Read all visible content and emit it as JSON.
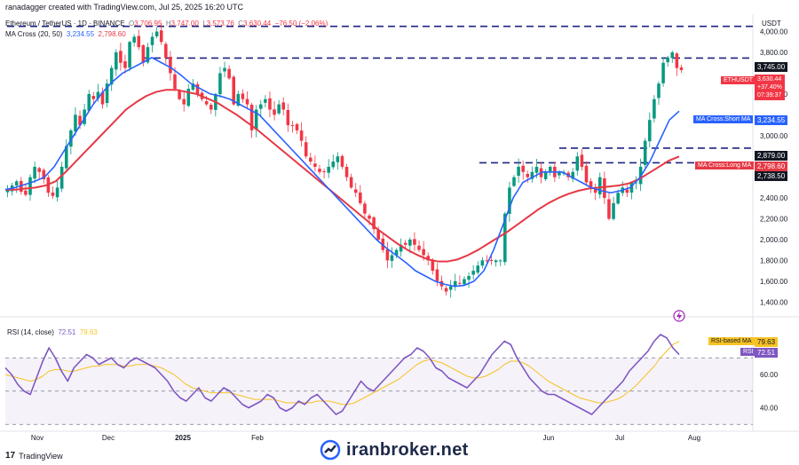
{
  "header": {
    "creator": "ranadagger created with TradingView.com, Jul 25, 2025 16:20 UTC",
    "symbol": "Ethereum / TetherUS · 1D · BINANCE",
    "o_label": "O",
    "o_value": "3,706.95",
    "h_label": "H",
    "h_value": "3,747.00",
    "l_label": "L",
    "l_value": "3,573.76",
    "c_label": "C",
    "c_value": "3,630.44",
    "change": "−76.50 (−2.06%)",
    "ma_label": "MA Cross (20, 50)",
    "ma_short": "3,234.55",
    "ma_long": "2,798.60"
  },
  "price_axis": {
    "unit": "USDT",
    "ticks": [
      "4,000.00",
      "3,800.00",
      "3,400.00",
      "3,000.00",
      "2,600.00",
      "2,400.00",
      "2,200.00",
      "2,000.00",
      "1,800.00",
      "1,600.00",
      "1,400.00"
    ]
  },
  "time_axis": [
    "Nov",
    "Dec",
    "2025",
    "Feb",
    "Jun",
    "Jul",
    "Aug"
  ],
  "price_badges": {
    "level_3745": "3,745.00",
    "symbol_tag": "ETHUSDT",
    "last_price": "3,630.44",
    "last_change": "+37.40%",
    "countdown": "07:39:37",
    "short_ma_label": "MA Cross:Short MA",
    "short_ma_value": "3,234.55",
    "level_2879": "2,879.00",
    "long_ma_label": "MA Cross:Long MA",
    "long_ma_value": "2,798.60",
    "level_2738": "2,738.50"
  },
  "rsi": {
    "label": "RSI (14, close)",
    "rsi_value": "72.51",
    "ma_value": "79.63",
    "ma_badge_label": "RSI-based MA",
    "ma_badge_value": "79.63",
    "rsi_badge_label": "RSI",
    "rsi_badge_value": "72.51",
    "ticks": [
      "60.00",
      "40.00"
    ]
  },
  "footer": {
    "tradingview": "TradingView",
    "watermark": "iranbroker.net"
  },
  "colors": {
    "up": "#089981",
    "down": "#f23645",
    "short_ma": "#2962ff",
    "long_ma": "#e53945",
    "rsi_line": "#7e57c2",
    "rsi_ma": "#f7c325",
    "level_line": "#1c2580"
  },
  "chart_data": {
    "type": "candlestick",
    "title": "Ethereum / TetherUS · 1D · BINANCE",
    "ylabel": "USDT",
    "ylim": [
      1300,
      4150
    ],
    "horizontal_levels": [
      4050,
      3745,
      2879,
      2738.5
    ],
    "close_path": [
      2480,
      2520,
      2560,
      2460,
      2430,
      2600,
      2700,
      2650,
      2580,
      2450,
      2420,
      2500,
      2700,
      2900,
      3050,
      3200,
      3100,
      3250,
      3400,
      3350,
      3420,
      3300,
      3500,
      3650,
      3800,
      3700,
      3650,
      3900,
      3950,
      3850,
      3700,
      3850,
      3950,
      4000,
      3900,
      3750,
      3600,
      3450,
      3350,
      3300,
      3450,
      3500,
      3400,
      3350,
      3300,
      3250,
      3400,
      3600,
      3650,
      3550,
      3300,
      3400,
      3350,
      3300,
      3050,
      3250,
      3300,
      3350,
      3250,
      3200,
      3300,
      3250,
      3100,
      3100,
      3050,
      2950,
      2800,
      2750,
      2700,
      2650,
      2650,
      2700,
      2750,
      2800,
      2700,
      2600,
      2500,
      2450,
      2350,
      2250,
      2200,
      2100,
      2000,
      1900,
      1800,
      1850,
      1900,
      1950,
      1950,
      2000,
      1950,
      1900,
      1850,
      1800,
      1700,
      1600,
      1550,
      1500,
      1550,
      1600,
      1580,
      1620,
      1650,
      1700,
      1750,
      1800,
      1800,
      1800,
      1800,
      1800,
      2250,
      2500,
      2600,
      2700,
      2650,
      2600,
      2650,
      2700,
      2600,
      2650,
      2700,
      2600,
      2650,
      2650,
      2600,
      2650,
      2800,
      2700,
      2550,
      2500,
      2450,
      2600,
      2400,
      2200,
      2350,
      2450,
      2500,
      2450,
      2550,
      2550,
      2700,
      2950,
      3150,
      3350,
      3500,
      3700,
      3750,
      3800,
      3650,
      3630
    ],
    "short_ma_path": [
      2480,
      2500,
      2530,
      2560,
      2600,
      2700,
      2850,
      3000,
      3150,
      3300,
      3420,
      3520,
      3600,
      3650,
      3700,
      3750,
      3700,
      3650,
      3580,
      3500,
      3450,
      3400,
      3380,
      3350,
      3300,
      3250,
      3200,
      3100,
      3000,
      2900,
      2800,
      2700,
      2600,
      2500,
      2400,
      2300,
      2200,
      2100,
      2000,
      1920,
      1850,
      1780,
      1700,
      1650,
      1600,
      1570,
      1550,
      1560,
      1600,
      1700,
      1900,
      2150,
      2400,
      2550,
      2600,
      2650,
      2650,
      2650,
      2600,
      2550,
      2500,
      2470,
      2450,
      2470,
      2500,
      2600,
      2750,
      2950,
      3150,
      3235
    ],
    "long_ma_path": [
      2480,
      2480,
      2490,
      2500,
      2520,
      2560,
      2650,
      2750,
      2850,
      2950,
      3050,
      3150,
      3250,
      3320,
      3380,
      3420,
      3440,
      3440,
      3420,
      3400,
      3360,
      3320,
      3260,
      3200,
      3130,
      3060,
      2980,
      2900,
      2820,
      2740,
      2660,
      2580,
      2500,
      2420,
      2340,
      2260,
      2180,
      2100,
      2030,
      1960,
      1900,
      1850,
      1810,
      1790,
      1790,
      1810,
      1850,
      1900,
      1960,
      2020,
      2080,
      2150,
      2220,
      2290,
      2350,
      2400,
      2440,
      2470,
      2490,
      2500,
      2510,
      2520,
      2540,
      2580,
      2640,
      2700,
      2760,
      2799
    ],
    "rsi_path": [
      64,
      60,
      54,
      50,
      48,
      58,
      68,
      76,
      70,
      62,
      56,
      64,
      68,
      72,
      70,
      66,
      68,
      70,
      66,
      64,
      68,
      70,
      68,
      66,
      64,
      60,
      56,
      50,
      46,
      44,
      48,
      52,
      46,
      44,
      48,
      52,
      50,
      46,
      42,
      40,
      42,
      44,
      48,
      46,
      40,
      38,
      40,
      44,
      42,
      46,
      48,
      44,
      40,
      36,
      38,
      44,
      50,
      56,
      52,
      50,
      54,
      58,
      62,
      66,
      70,
      72,
      76,
      74,
      70,
      64,
      62,
      58,
      56,
      54,
      52,
      56,
      60,
      66,
      72,
      76,
      80,
      78,
      70,
      64,
      58,
      54,
      50,
      48,
      48,
      46,
      44,
      42,
      40,
      38,
      36,
      40,
      44,
      48,
      52,
      56,
      62,
      66,
      70,
      74,
      80,
      84,
      82,
      76,
      72
    ],
    "rsi_ma_path": [
      60,
      59,
      58,
      57,
      56,
      57,
      59,
      62,
      63,
      63,
      62,
      62,
      63,
      64,
      65,
      65,
      66,
      66,
      66,
      65,
      65,
      66,
      66,
      66,
      65,
      64,
      62,
      60,
      57,
      54,
      52,
      51,
      50,
      49,
      49,
      49,
      49,
      48,
      47,
      46,
      45,
      45,
      45,
      45,
      44,
      43,
      43,
      43,
      43,
      43,
      44,
      44,
      44,
      43,
      42,
      42,
      43,
      45,
      47,
      49,
      51,
      53,
      55,
      57,
      60,
      63,
      66,
      68,
      69,
      68,
      67,
      65,
      63,
      61,
      59,
      58,
      58,
      59,
      61,
      63,
      66,
      68,
      68,
      67,
      65,
      62,
      59,
      56,
      54,
      52,
      50,
      48,
      46,
      45,
      44,
      43,
      43,
      44,
      45,
      47,
      50,
      53,
      57,
      61,
      65,
      70,
      74,
      78,
      80
    ],
    "ylim_rsi": [
      28,
      92
    ],
    "rsi_levels": [
      70,
      50,
      30
    ]
  }
}
